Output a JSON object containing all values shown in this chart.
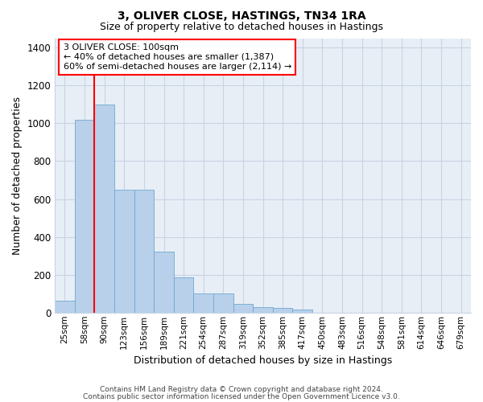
{
  "title1": "3, OLIVER CLOSE, HASTINGS, TN34 1RA",
  "title2": "Size of property relative to detached houses in Hastings",
  "xlabel": "Distribution of detached houses by size in Hastings",
  "ylabel": "Number of detached properties",
  "categories": [
    "25sqm",
    "58sqm",
    "90sqm",
    "123sqm",
    "156sqm",
    "189sqm",
    "221sqm",
    "254sqm",
    "287sqm",
    "319sqm",
    "352sqm",
    "385sqm",
    "417sqm",
    "450sqm",
    "483sqm",
    "516sqm",
    "548sqm",
    "581sqm",
    "614sqm",
    "646sqm",
    "679sqm"
  ],
  "values": [
    62,
    1020,
    1100,
    650,
    650,
    320,
    188,
    100,
    100,
    47,
    30,
    25,
    15,
    0,
    0,
    0,
    0,
    0,
    0,
    0,
    0
  ],
  "bar_color": "#b8d0ea",
  "bar_edge_color": "#6fa8d0",
  "grid_color": "#c8d4e4",
  "background_color": "#e8eef6",
  "vline_color": "red",
  "annotation_text": "3 OLIVER CLOSE: 100sqm\n← 40% of detached houses are smaller (1,387)\n60% of semi-detached houses are larger (2,114) →",
  "annotation_box_color": "white",
  "annotation_box_edge": "red",
  "ylim": [
    0,
    1450
  ],
  "yticks": [
    0,
    200,
    400,
    600,
    800,
    1000,
    1200,
    1400
  ],
  "footer1": "Contains HM Land Registry data © Crown copyright and database right 2024.",
  "footer2": "Contains public sector information licensed under the Open Government Licence v3.0."
}
